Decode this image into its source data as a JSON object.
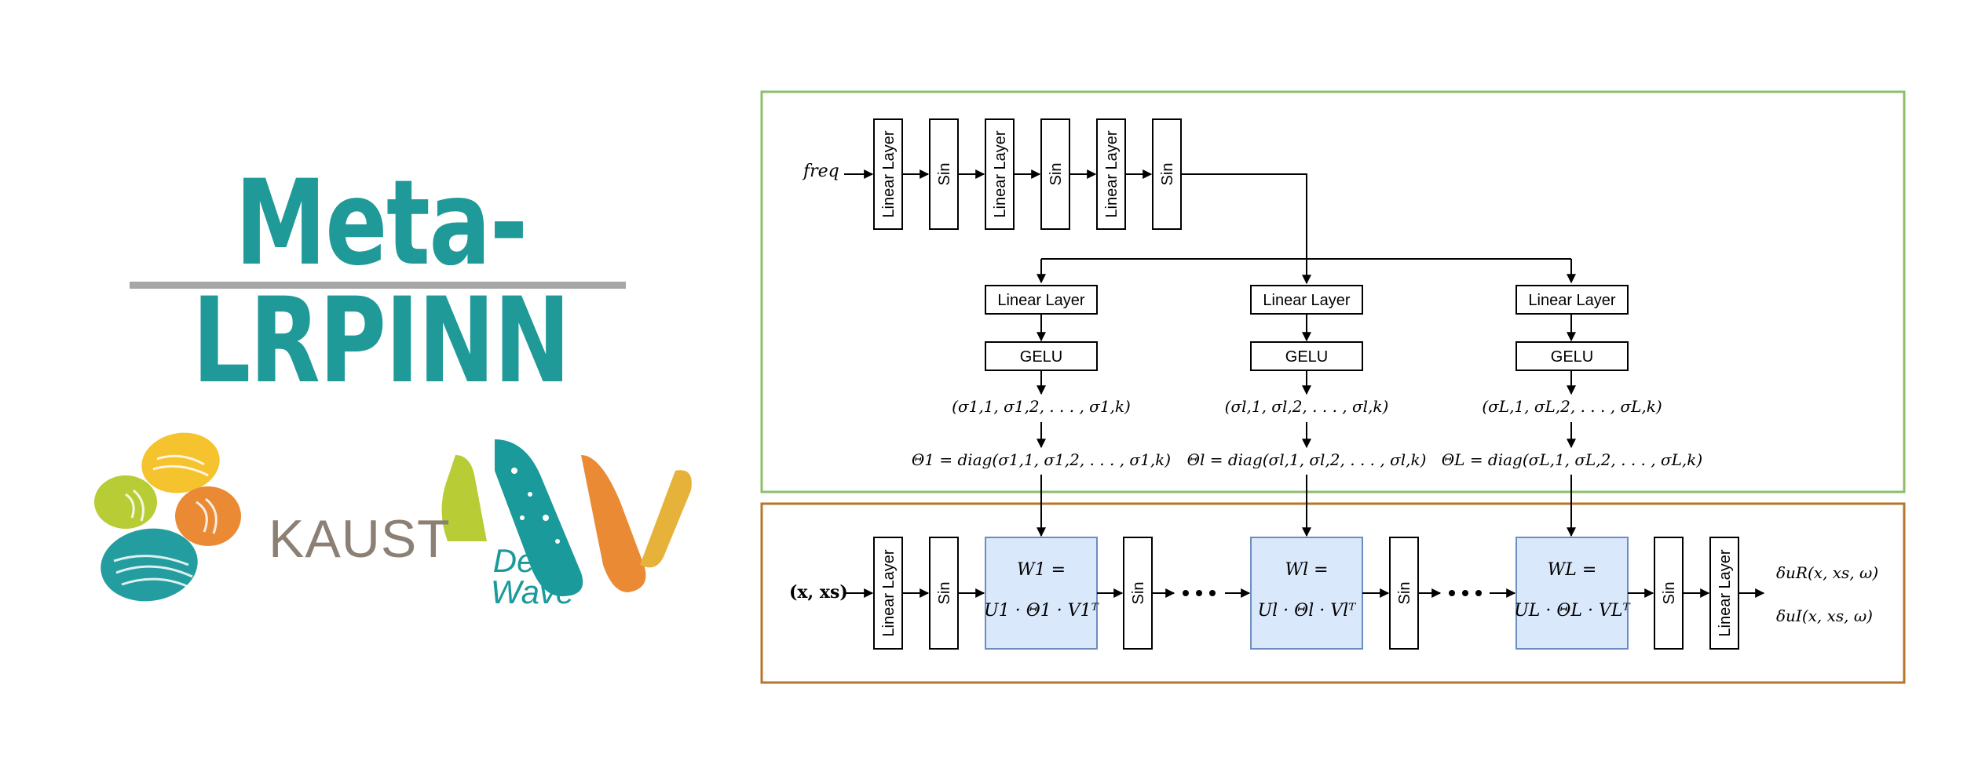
{
  "title": "Meta-LRPINN",
  "logos": {
    "kaust": "KAUST",
    "deepwave": "Deep Wave"
  },
  "colors": {
    "title": "#1f9a99",
    "underline": "#a6a6a6",
    "top_frame": "#8dbf6b",
    "bottom_frame": "#b8742a",
    "w_fill": "#dae8fc",
    "w_stroke": "#6c8ebf"
  },
  "diagram": {
    "freq": "freq",
    "linear_layer": "Linear Layer",
    "sin": "Sin",
    "gelu": "GELU",
    "branches": [
      {
        "sigma": "(σ1,1, σ1,2, . . . , σ1,k)",
        "theta": "Θ1 = diag(σ1,1, σ1,2, . . . , σ1,k)",
        "w_top": "W1 =",
        "w_bot": "U1 · Θ1 · V1ᵀ"
      },
      {
        "sigma": "(σl,1, σl,2, . . . , σl,k)",
        "theta": "Θl = diag(σl,1, σl,2, . . . , σl,k)",
        "w_top": "Wl =",
        "w_bot": "Ul · Θl · Vlᵀ"
      },
      {
        "sigma": "(σL,1, σL,2, . . . , σL,k)",
        "theta": "ΘL = diag(σL,1, σL,2, . . . , σL,k)",
        "w_top": "WL =",
        "w_bot": "UL · ΘL · VLᵀ"
      }
    ],
    "input": "(x, xs)",
    "outputs": [
      "δuR(x, xs, ω)",
      "δuI(x, xs, ω)"
    ]
  }
}
